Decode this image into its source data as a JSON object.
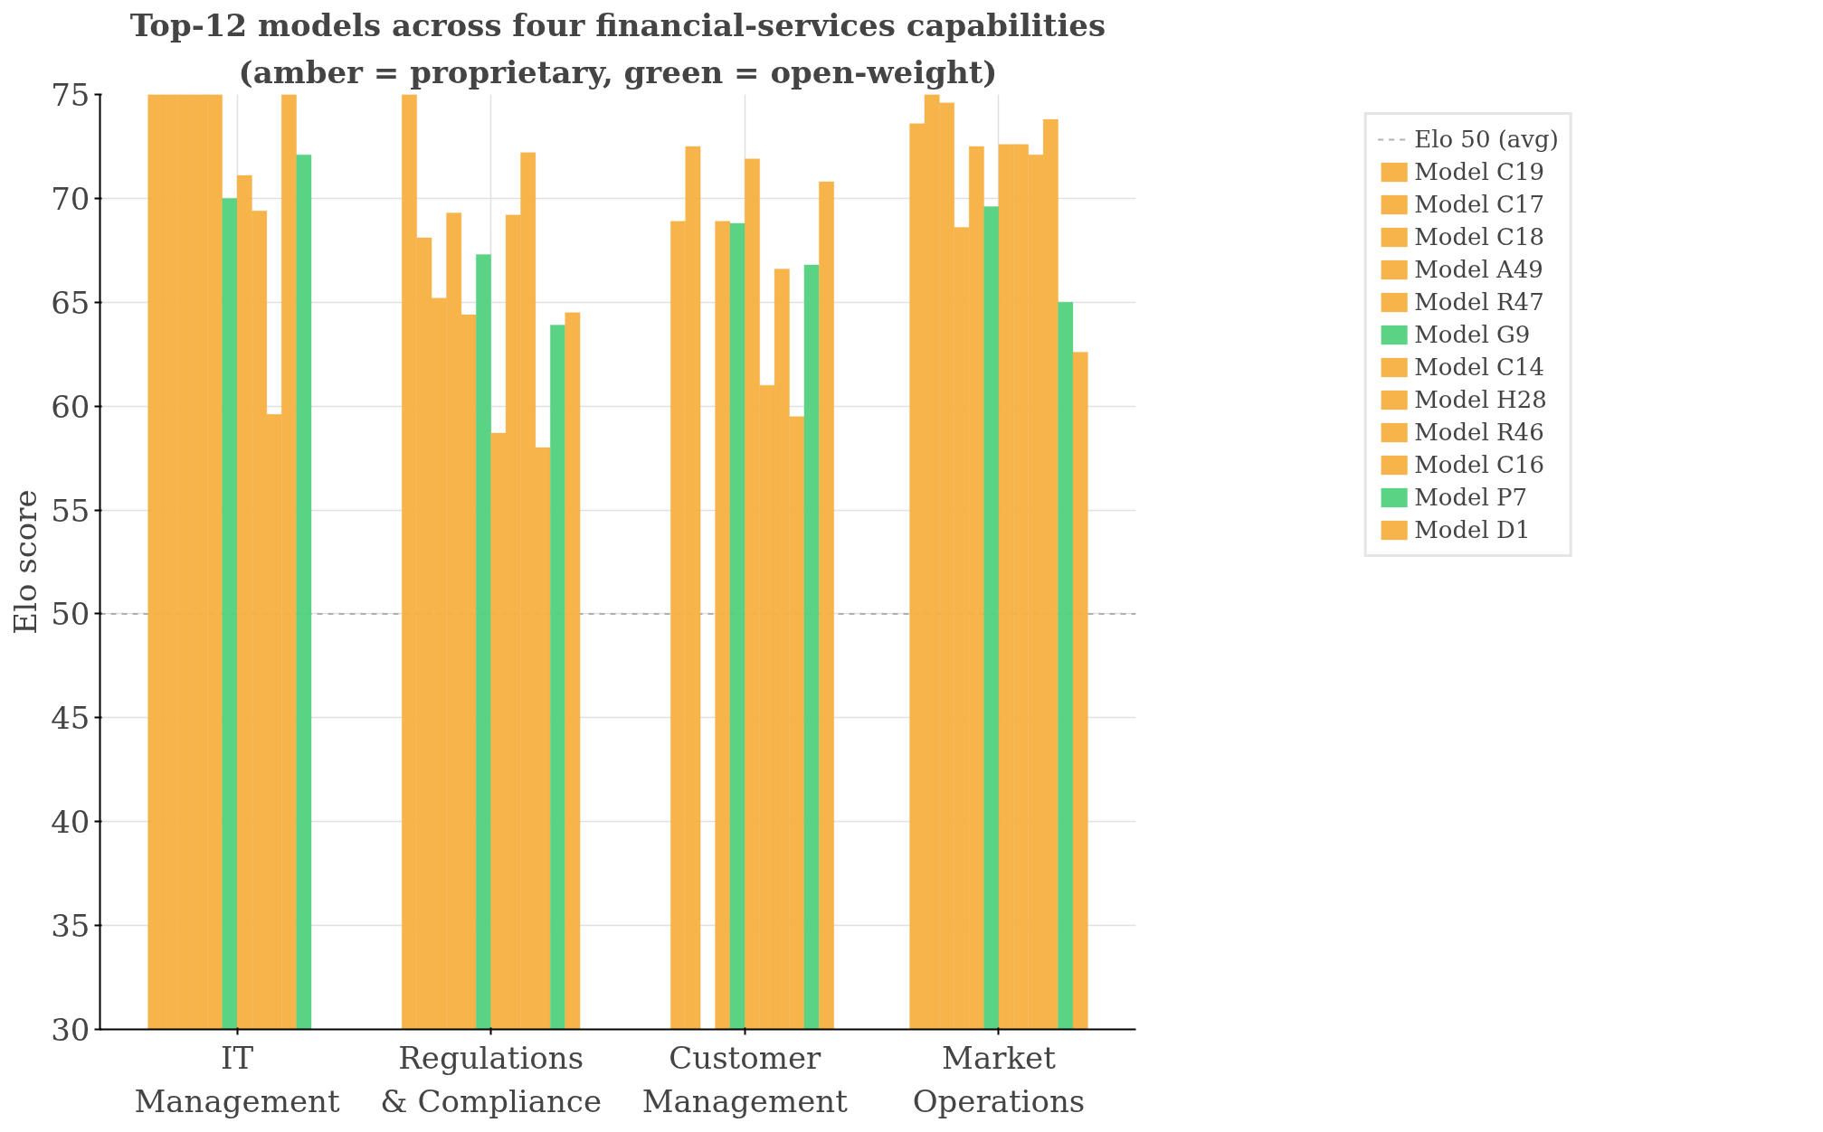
{
  "chart_data": {
    "type": "bar",
    "title": "Top-12 models across four financial-services capabilities",
    "subtitle": "(amber = proprietary, green = open-weight)",
    "ylabel": "Elo score",
    "categories": [
      "IT Management",
      "Regulations & Compliance",
      "Customer Management",
      "Market Operations"
    ],
    "ylim": [
      30,
      75
    ],
    "yticks": [
      30,
      35,
      40,
      45,
      50,
      55,
      60,
      65,
      70,
      75
    ],
    "grid": true,
    "legend": "right",
    "ref_lines": [
      {
        "axis": "y",
        "value": 50,
        "label": "Elo 50 (avg)",
        "color": "#b0b0b0",
        "line_style": "dashed"
      }
    ],
    "series": [
      {
        "name": "Model C19",
        "color": "#f5b041",
        "values": [
          75,
          75,
          null,
          73.6
        ]
      },
      {
        "name": "Model C17",
        "color": "#f5b041",
        "values": [
          75,
          68.1,
          68.9,
          75
        ]
      },
      {
        "name": "Model C18",
        "color": "#f5b041",
        "values": [
          75,
          65.2,
          72.5,
          74.6
        ]
      },
      {
        "name": "Model A49",
        "color": "#f5b041",
        "values": [
          75,
          69.3,
          null,
          68.6
        ]
      },
      {
        "name": "Model R47",
        "color": "#f5b041",
        "values": [
          75,
          64.4,
          68.9,
          72.5
        ]
      },
      {
        "name": "Model G9",
        "color": "#52d17e",
        "values": [
          70.0,
          67.3,
          68.8,
          69.6
        ]
      },
      {
        "name": "Model C14",
        "color": "#f5b041",
        "values": [
          71.1,
          58.7,
          71.9,
          72.6
        ]
      },
      {
        "name": "Model H28",
        "color": "#f5b041",
        "values": [
          69.4,
          69.2,
          61.0,
          72.6
        ]
      },
      {
        "name": "Model R46",
        "color": "#f5b041",
        "values": [
          59.6,
          72.2,
          66.6,
          72.1
        ]
      },
      {
        "name": "Model C16",
        "color": "#f5b041",
        "values": [
          75,
          58.0,
          59.5,
          73.8
        ]
      },
      {
        "name": "Model P7",
        "color": "#52d17e",
        "values": [
          72.1,
          63.9,
          66.8,
          65.0
        ]
      },
      {
        "name": "Model D1",
        "color": "#f5b041",
        "values": [
          null,
          64.5,
          70.8,
          62.6
        ]
      }
    ]
  }
}
